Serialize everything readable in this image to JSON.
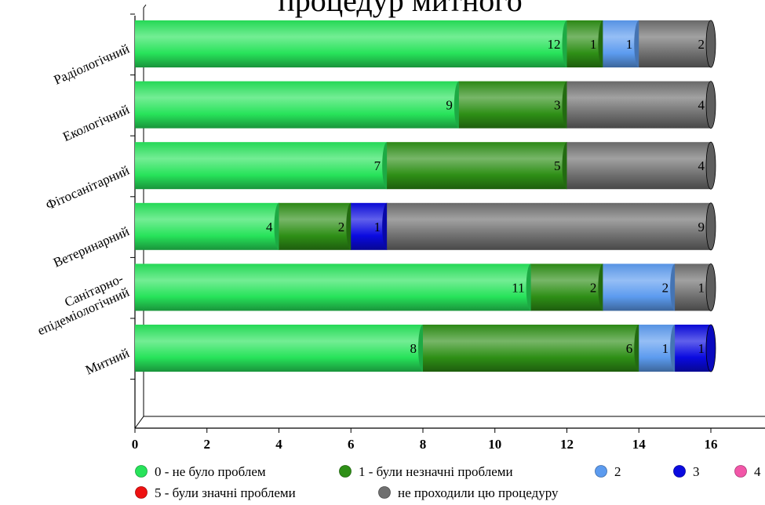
{
  "chart_data": {
    "type": "bar",
    "orientation": "horizontal",
    "stacked": true,
    "title": "процедур митного",
    "categories": [
      "Радіологічний",
      "Екологічний",
      "Фітосанітарний",
      "Ветеринарний",
      "Санітарно-епідеміологічний",
      "Митний"
    ],
    "category_lines": [
      [
        "Радіологічний"
      ],
      [
        "Екологічний"
      ],
      [
        "Фітосанітарний"
      ],
      [
        "Ветеринарний"
      ],
      [
        "Санітарно-",
        "епідеміологічний"
      ],
      [
        "Митний"
      ]
    ],
    "series": [
      {
        "name": "0 - не було проблем",
        "color": "#27e35a",
        "values": [
          12,
          9,
          7,
          4,
          11,
          8
        ]
      },
      {
        "name": "1 - були незначні проблеми",
        "color": "#2e8f16",
        "values": [
          1,
          3,
          5,
          2,
          2,
          6
        ]
      },
      {
        "name": "2",
        "color": "#5c9bef",
        "values": [
          1,
          0,
          0,
          0,
          2,
          1
        ]
      },
      {
        "name": "3",
        "color": "#0a0ae0",
        "values": [
          0,
          0,
          0,
          1,
          0,
          1
        ]
      },
      {
        "name": "4",
        "color": "#f256a8",
        "values": [
          0,
          0,
          0,
          0,
          0,
          0
        ]
      },
      {
        "name": "5 - були значні проблеми",
        "color": "#ee1111",
        "values": [
          0,
          0,
          0,
          0,
          0,
          0
        ]
      },
      {
        "name": "не проходили цю процедуру",
        "color": "#6f6f6f",
        "values": [
          2,
          4,
          4,
          9,
          1,
          0
        ]
      }
    ],
    "xlim": [
      0,
      17
    ],
    "xticks": [
      0,
      2,
      4,
      6,
      8,
      10,
      12,
      14,
      16
    ],
    "xlabel": "",
    "ylabel": "",
    "grid": false,
    "legend_position": "bottom",
    "data_labels": true
  }
}
